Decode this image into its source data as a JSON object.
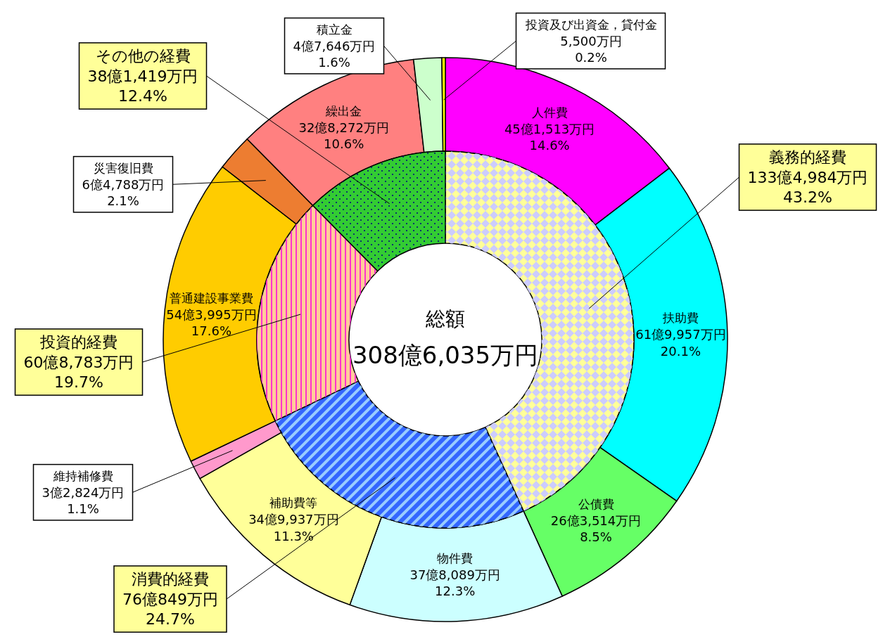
{
  "chart_data": [
    {
      "type": "donut",
      "categories": [
        "人件費",
        "扶助費",
        "公債費",
        "物件費",
        "補助費等",
        "維持補修費",
        "普通建設事業費",
        "災害復旧費",
        "繰出金",
        "積立金",
        "投資及び出資金，貸付金"
      ],
      "values": [
        14.6,
        20.1,
        8.5,
        12.3,
        11.3,
        1.1,
        17.6,
        2.1,
        10.6,
        1.6,
        0.2
      ],
      "colors": [
        "#ff00ff",
        "#00ffff",
        "#66ff66",
        "#ccffff",
        "#ffff99",
        "#ff99cc",
        "#ffcc00",
        "#ed7d31",
        "#ff8080",
        "#ccffcc",
        "#ffff00"
      ],
      "value_labels": [
        "45億1,513万円\n14.6%",
        "61億9,957万円\n20.1%",
        "26億3,514万円\n8.5%",
        "37億8,089万円\n12.3%",
        "34億9,937万円\n11.3%",
        "3億2,824万円\n1.1%",
        "54億3,995万円\n17.6%",
        "6億4,788万円\n2.1%",
        "32億8,272万円\n10.6%",
        "4億7,646万円\n1.6%",
        "5,500万円\n0.2%"
      ]
    },
    {
      "type": "donut",
      "title": "総額",
      "subtitle": "308億6,035万円",
      "categories": [
        "義務的経費",
        "消費的経費",
        "投資的経費",
        "その他の経費"
      ],
      "values": [
        43.2,
        24.7,
        19.7,
        12.4
      ],
      "colors": [
        "#ffff99",
        "#3366ff",
        "#ffcc99",
        "#33cc33"
      ],
      "value_labels": [
        "133億4,984万円\n43.2%",
        "76億849万円\n24.7%",
        "60億8,783万円\n19.7%",
        "38億1,419万円\n12.4%"
      ]
    }
  ]
}
